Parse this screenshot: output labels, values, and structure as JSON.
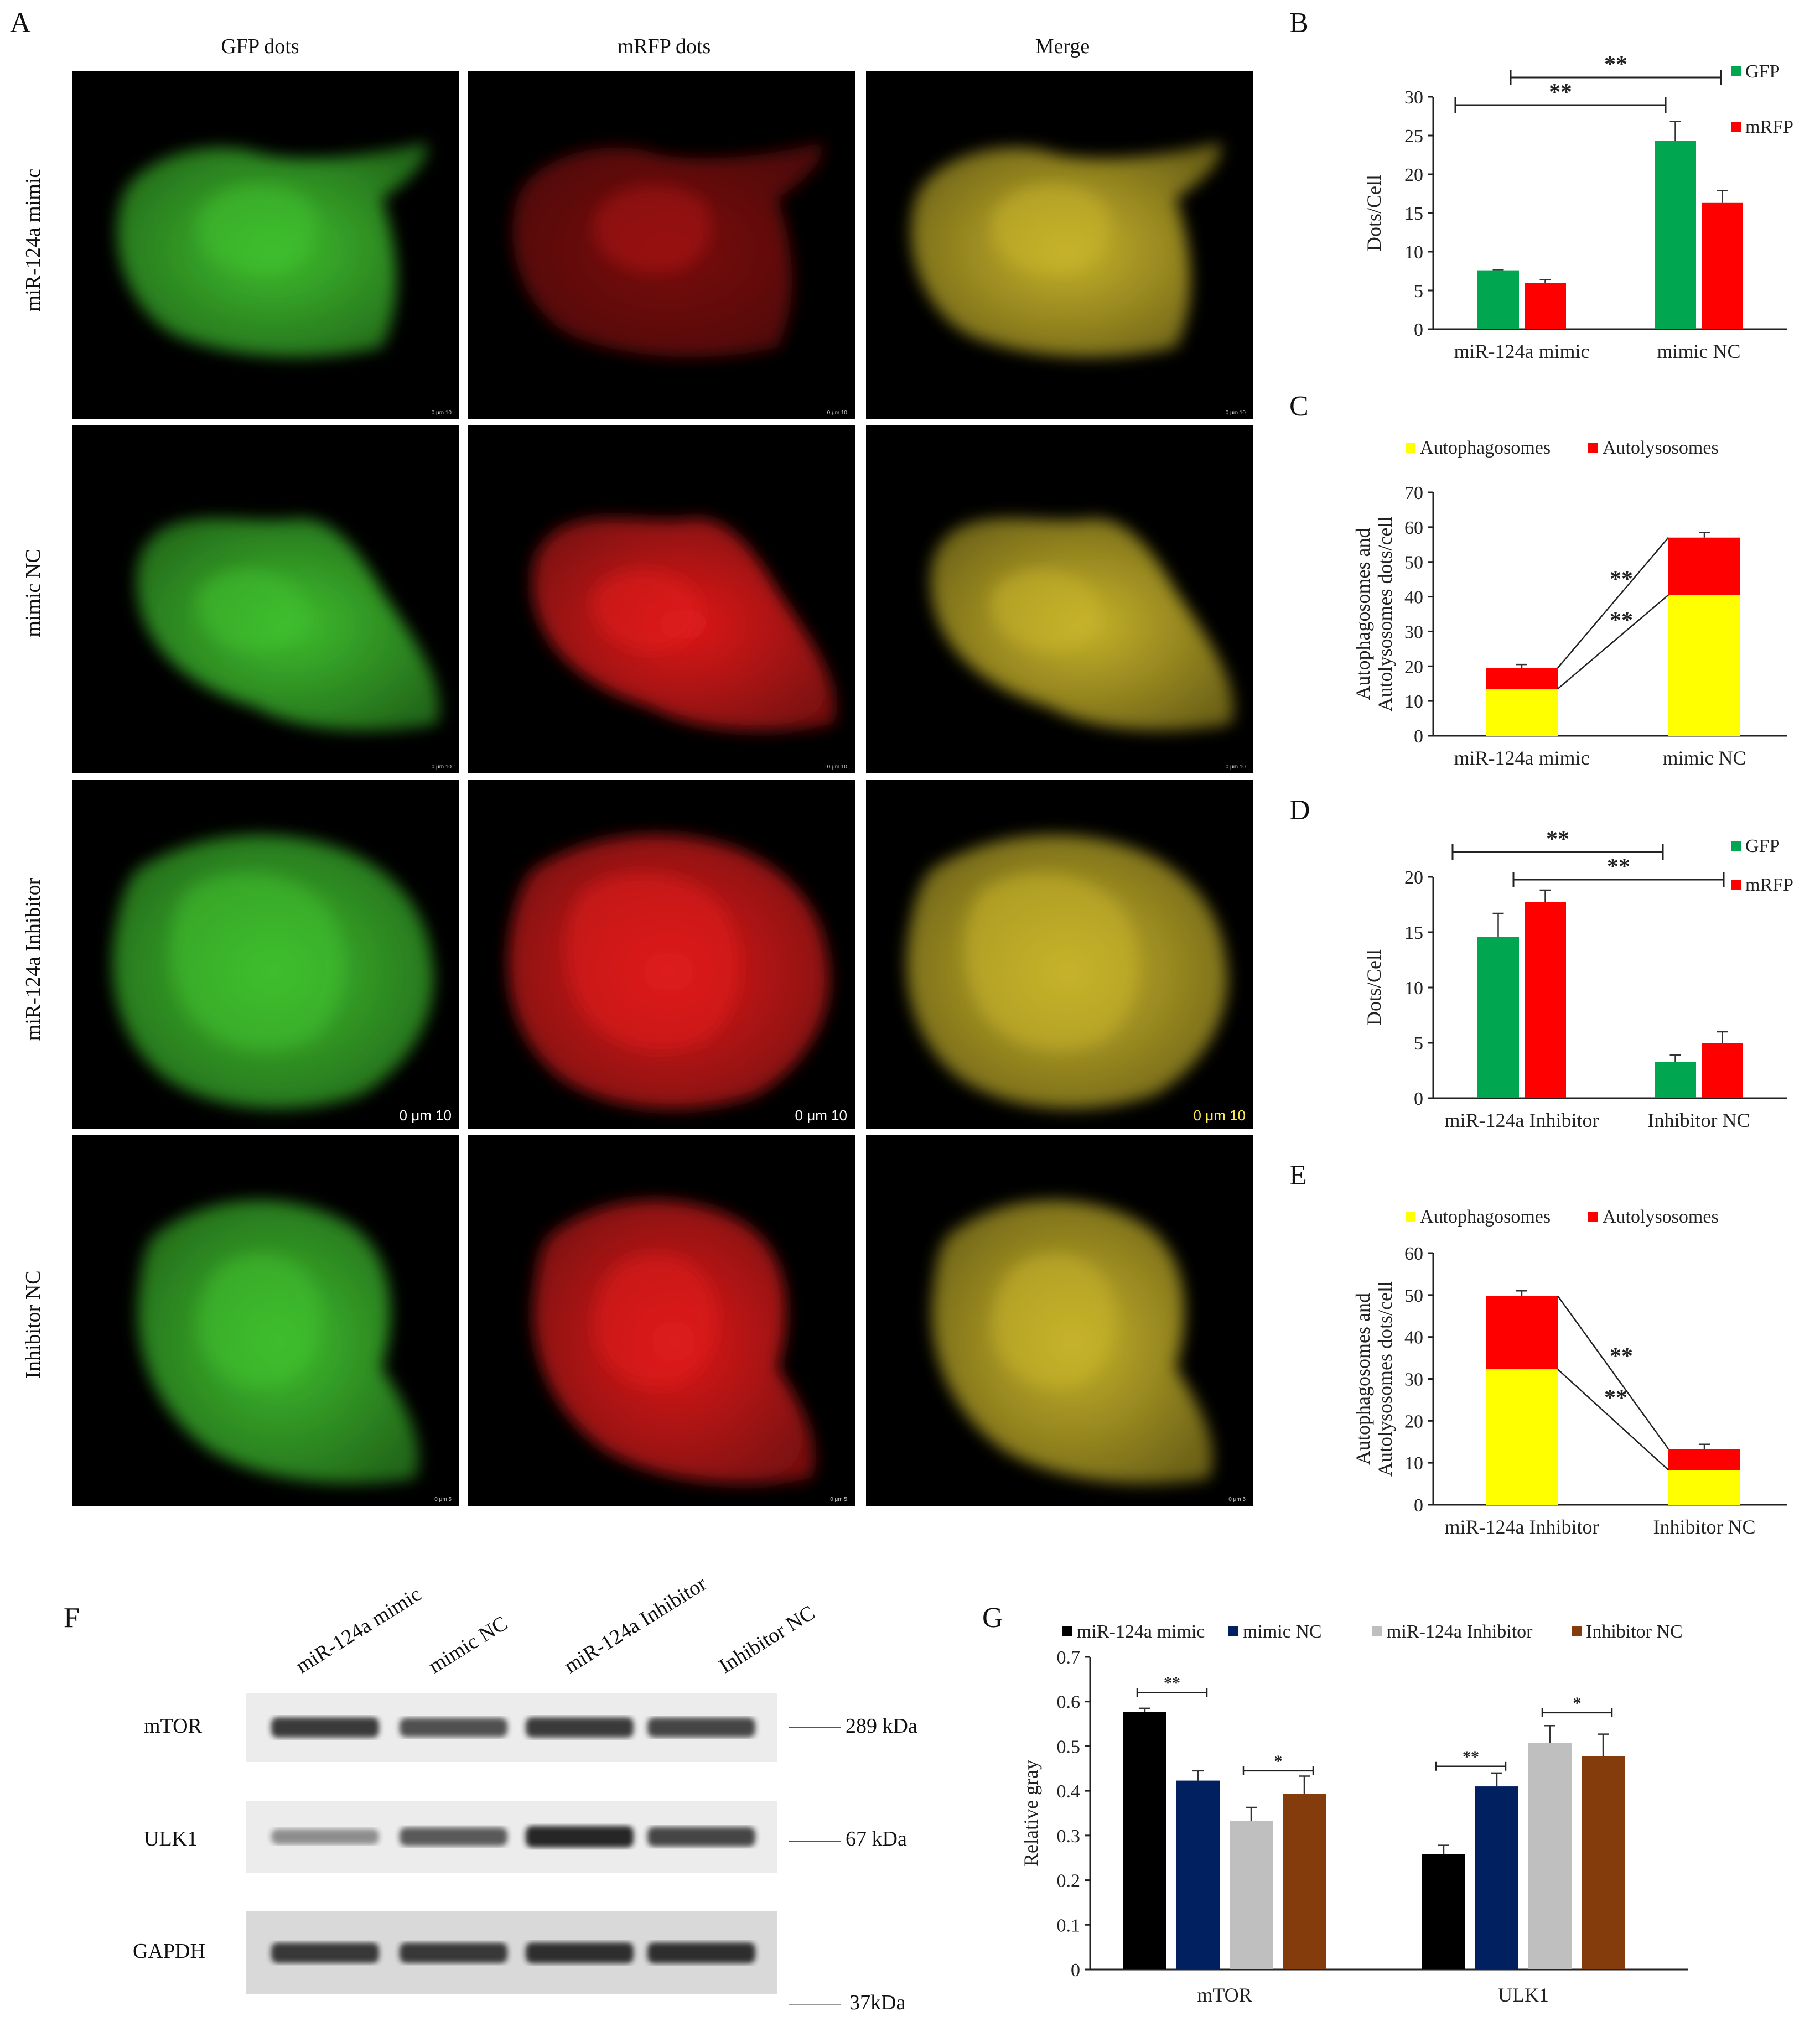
{
  "panels": {
    "A": "A",
    "B": "B",
    "C": "C",
    "D": "D",
    "E": "E",
    "F": "F",
    "G": "G"
  },
  "microscopy": {
    "columns": [
      "GFP dots",
      "mRFP dots",
      "Merge"
    ],
    "rows": [
      "miR-124a mimic",
      "mimic NC",
      "miR-124a Inhibitor",
      "Inhibitor NC"
    ],
    "scale_bars": [
      [
        "0  μm  10",
        "0  μm  10",
        "0  μm  10"
      ],
      [
        "0  μm  10",
        "0  μm  10",
        "0  μm  10"
      ],
      [
        "0  μm  10",
        "0  μm  10",
        "0  μm  10"
      ],
      [
        "0  μm  5",
        "0  μm  5",
        "0  μm  5"
      ]
    ],
    "colors": {
      "gfp": "#3fbf2e",
      "mrfp": "#e01a1a",
      "merge": "#c8b42a"
    }
  },
  "chart_data": [
    {
      "id": "B",
      "type": "bar",
      "categories": [
        "miR-124a mimic",
        "mimic NC"
      ],
      "series": [
        {
          "name": "GFP",
          "color": "#00a650",
          "values": [
            7.6,
            24.3
          ],
          "errors": [
            0.1,
            2.5
          ]
        },
        {
          "name": "mRFP",
          "color": "#ff0000",
          "values": [
            6.0,
            16.3
          ],
          "errors": [
            0.4,
            1.6
          ]
        }
      ],
      "ylabel": "Dots/Cell",
      "ylim": [
        0,
        30
      ],
      "yticks": [
        0,
        5,
        10,
        15,
        20,
        25,
        30
      ],
      "annotations": [
        "**",
        "**"
      ],
      "legend": "top-right"
    },
    {
      "id": "C",
      "type": "bar",
      "stacked": true,
      "categories": [
        "miR-124a mimic",
        "mimic NC"
      ],
      "series": [
        {
          "name": "Autophagosomes",
          "color": "#ffff00",
          "values": [
            13.5,
            40.5
          ],
          "errors": [
            1.2,
            4.5
          ]
        },
        {
          "name": "Autolysosomes",
          "color": "#ff0000",
          "values": [
            6.0,
            16.5
          ],
          "errors": [
            1.0,
            1.5
          ]
        }
      ],
      "ylabel": "Autophagosomes and\nAutolysosomes dots/cell",
      "ylim": [
        0,
        70
      ],
      "yticks": [
        0,
        10,
        20,
        30,
        40,
        50,
        60,
        70
      ],
      "annotations": [
        "**",
        "**"
      ],
      "legend": "top"
    },
    {
      "id": "D",
      "type": "bar",
      "categories": [
        "miR-124a Inhibitor",
        "Inhibitor NC"
      ],
      "series": [
        {
          "name": "GFP",
          "color": "#00a650",
          "values": [
            14.6,
            3.3
          ],
          "errors": [
            2.1,
            0.6
          ]
        },
        {
          "name": "mRFP",
          "color": "#ff0000",
          "values": [
            17.7,
            5.0
          ],
          "errors": [
            1.1,
            1.0
          ]
        }
      ],
      "ylabel": "Dots/Cell",
      "ylim": [
        0,
        20
      ],
      "yticks": [
        0,
        5,
        10,
        15,
        20
      ],
      "annotations": [
        "**",
        "**"
      ],
      "legend": "top-right"
    },
    {
      "id": "E",
      "type": "bar",
      "stacked": true,
      "categories": [
        "miR-124a Inhibitor",
        "Inhibitor NC"
      ],
      "series": [
        {
          "name": "Autophagosomes",
          "color": "#ffff00",
          "values": [
            32.3,
            8.3
          ],
          "errors": [
            3.3,
            1.4
          ]
        },
        {
          "name": "Autolysosomes",
          "color": "#ff0000",
          "values": [
            17.5,
            5.0
          ],
          "errors": [
            1.2,
            1.1
          ]
        }
      ],
      "ylabel": "Autophagosomes and\nAutolysosomes dots/cell",
      "ylim": [
        0,
        60
      ],
      "yticks": [
        0,
        10,
        20,
        30,
        40,
        50,
        60
      ],
      "annotations": [
        "**",
        "**"
      ],
      "legend": "top"
    },
    {
      "id": "G",
      "type": "bar",
      "categories": [
        "mTOR",
        "ULK1"
      ],
      "series": [
        {
          "name": "miR-124a mimic",
          "color": "#000000",
          "values": [
            0.577,
            0.258
          ],
          "errors": [
            0.008,
            0.02
          ]
        },
        {
          "name": "mimic NC",
          "color": "#002060",
          "values": [
            0.423,
            0.41
          ],
          "errors": [
            0.022,
            0.03
          ]
        },
        {
          "name": "miR-124a Inhibitor",
          "color": "#bfbfbf",
          "values": [
            0.333,
            0.508
          ],
          "errors": [
            0.03,
            0.038
          ]
        },
        {
          "name": "Inhibitor NC",
          "color": "#843c0c",
          "values": [
            0.393,
            0.477
          ],
          "errors": [
            0.04,
            0.05
          ]
        }
      ],
      "ylabel": "Relative gray",
      "ylim": [
        0,
        0.7
      ],
      "yticks": [
        "0",
        "0.1",
        "0.2",
        "0.3",
        "0.4",
        "0.5",
        "0.6",
        "0.7"
      ],
      "annotations": [
        "**",
        "*",
        "**",
        "*"
      ],
      "legend": "top"
    }
  ],
  "western_blot": {
    "lanes": [
      "miR-124a mimic",
      "mimic NC",
      "miR-124a Inhibitor",
      "Inhibitor NC"
    ],
    "proteins": [
      {
        "name": "mTOR",
        "kda": "289 kDa",
        "intensity": [
          0.85,
          0.75,
          0.85,
          0.8
        ]
      },
      {
        "name": "ULK1",
        "kda": "67 kDa",
        "intensity": [
          0.45,
          0.7,
          0.95,
          0.8
        ]
      },
      {
        "name": "GAPDH",
        "kda": "37kDa",
        "intensity": [
          0.85,
          0.85,
          0.9,
          0.9
        ]
      }
    ]
  }
}
